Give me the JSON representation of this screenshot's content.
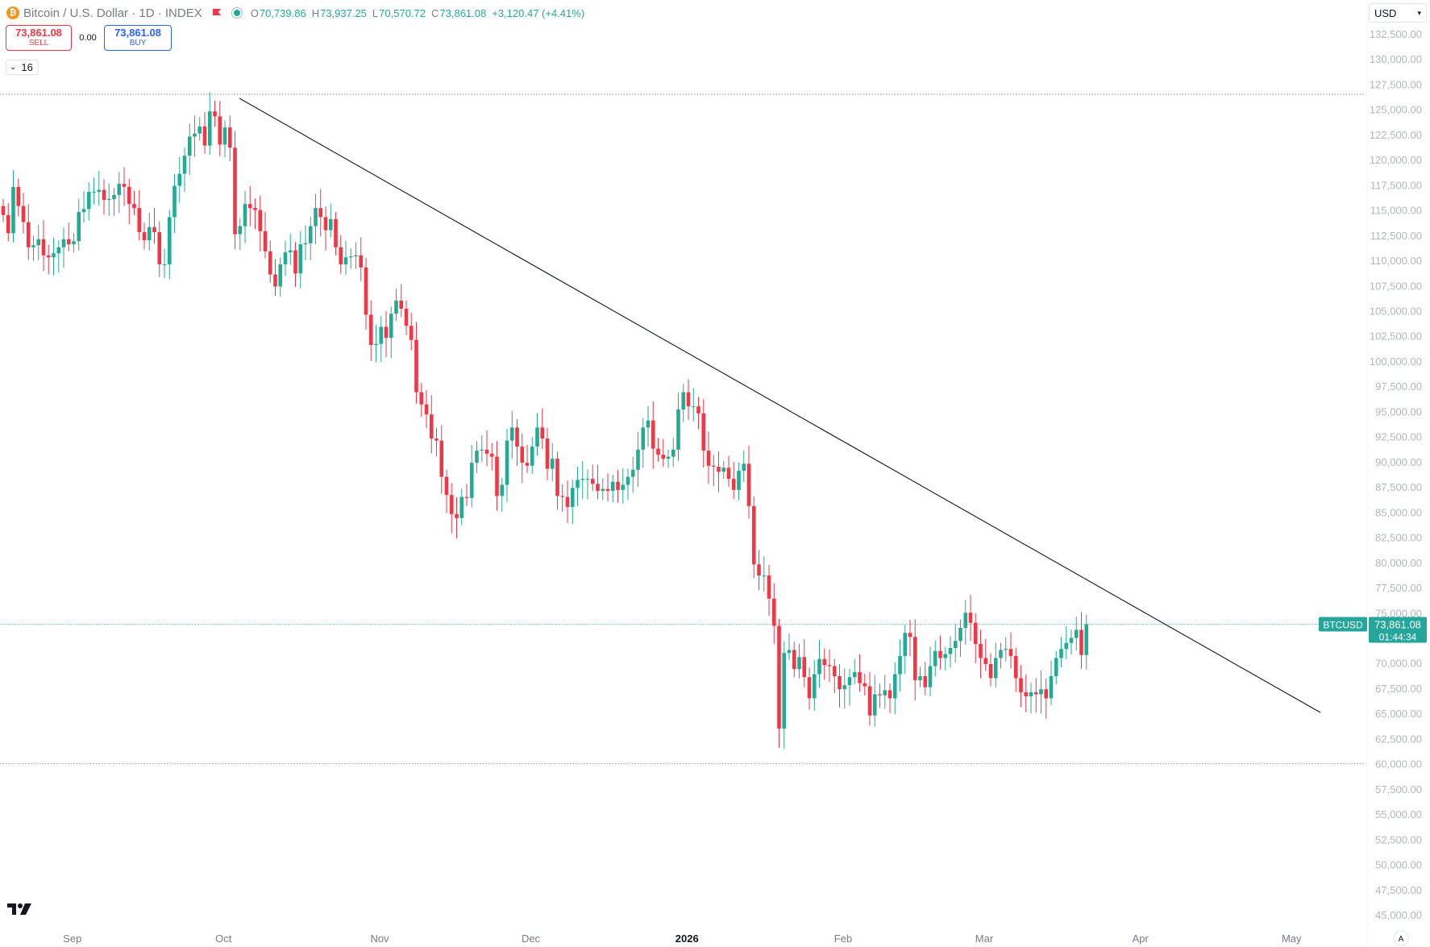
{
  "header": {
    "symbol_title": "Bitcoin / U.S. Dollar · 1D · INDEX",
    "coin_glyph": "₿",
    "open_key": "O",
    "open_value": "70,739.86",
    "high_key": "H",
    "high_value": "73,937.25",
    "low_key": "L",
    "low_value": "70,570.72",
    "close_key": "C",
    "close_value": "73,861.08",
    "change": "+3,120.47 (+4.41%)",
    "flag_icon": "flag-icon",
    "status_icon": "market-open-icon"
  },
  "trade": {
    "sell_price": "73,861.08",
    "sell_label": "SELL",
    "spread": "0.00",
    "buy_price": "73,861.08",
    "buy_label": "BUY"
  },
  "indicator_toggle": {
    "count": "16"
  },
  "currency_select": {
    "value": "USD"
  },
  "colors": {
    "up": "#22ab94",
    "down": "#f23645",
    "accent": "#26a69a",
    "text": "#131722",
    "muted": "#787b86"
  },
  "chart_data": {
    "type": "candlestick",
    "symbol": "BTCUSD",
    "interval": "1D",
    "price_axis": {
      "min": 43500,
      "max": 134000,
      "ticks": [
        "132,500.00",
        "130,000.00",
        "127,500.00",
        "125,000.00",
        "122,500.00",
        "120,000.00",
        "117,500.00",
        "115,000.00",
        "112,500.00",
        "110,000.00",
        "107,500.00",
        "105,000.00",
        "102,500.00",
        "100,000.00",
        "97,500.00",
        "95,000.00",
        "92,500.00",
        "90,000.00",
        "87,500.00",
        "85,000.00",
        "82,500.00",
        "80,000.00",
        "77,500.00",
        "75,000.00",
        "72,500.00",
        "70,000.00",
        "67,500.00",
        "65,000.00",
        "62,500.00",
        "60,000.00",
        "57,500.00",
        "55,000.00",
        "52,500.00",
        "50,000.00",
        "47,500.00",
        "45,000.00"
      ]
    },
    "time_axis": {
      "labels": [
        {
          "text": "Sep",
          "date": "2025-09-01",
          "bold": false
        },
        {
          "text": "Oct",
          "date": "2025-10-01",
          "bold": false
        },
        {
          "text": "Nov",
          "date": "2025-11-01",
          "bold": false
        },
        {
          "text": "Dec",
          "date": "2025-12-01",
          "bold": false
        },
        {
          "text": "2026",
          "date": "2026-01-01",
          "bold": true
        },
        {
          "text": "Feb",
          "date": "2026-02-01",
          "bold": false
        },
        {
          "text": "Mar",
          "date": "2026-03-01",
          "bold": false
        },
        {
          "text": "Apr",
          "date": "2026-04-01",
          "bold": false
        },
        {
          "text": "May",
          "date": "2026-05-01",
          "bold": false
        }
      ],
      "auto_scale_label": "A"
    },
    "ohlc_closes": [
      114500,
      112700,
      117300,
      115400,
      113800,
      111300,
      111500,
      112100,
      110500,
      110300,
      110700,
      111300,
      112100,
      111600,
      111900,
      114800,
      115100,
      116800,
      116800,
      117000,
      116000,
      116100,
      116500,
      117600,
      117300,
      115600,
      115200,
      112800,
      112000,
      113300,
      112800,
      109600,
      109600,
      114300,
      117400,
      118600,
      120400,
      122300,
      122600,
      123300,
      121400,
      124800,
      124300,
      121500,
      123200,
      121200,
      112600,
      113400,
      115600,
      115200,
      115000,
      112900,
      110900,
      108600,
      107400,
      109600,
      110800,
      111000,
      108700,
      111600,
      111700,
      113400,
      115200,
      114300,
      113000,
      114100,
      111300,
      109600,
      110300,
      110400,
      110500,
      109300,
      104600,
      101600,
      101700,
      103400,
      102300,
      104700,
      106000,
      105200,
      103500,
      102100,
      96900,
      95700,
      94700,
      92300,
      92100,
      88500,
      86700,
      84800,
      84400,
      86500,
      86400,
      89900,
      91100,
      91200,
      90800,
      90500,
      86600,
      87700,
      92100,
      93400,
      91500,
      89900,
      89600,
      91500,
      93400,
      92300,
      89300,
      90300,
      86600,
      86500,
      85500,
      87400,
      88200,
      88300,
      88300,
      87800,
      87100,
      87300,
      87100,
      88000,
      87200,
      87700,
      88500,
      89200,
      91200,
      93400,
      94100,
      91300,
      90700,
      90300,
      90500,
      91200,
      95200,
      96900,
      95500,
      95500,
      94800,
      91100,
      89600,
      89500,
      89000,
      89400,
      88300,
      87200,
      89100,
      89800,
      85600,
      79800,
      78700,
      78700,
      76400,
      73700,
      63500,
      71000,
      71300,
      69400,
      70600,
      68600,
      66500,
      68900,
      70400,
      69800,
      69700,
      68700,
      67400,
      67800,
      68600,
      69100,
      68000,
      67700,
      64800,
      66900,
      66800,
      67300,
      66500,
      68900,
      70700,
      73000,
      72600,
      68300,
      68700,
      67600,
      69700,
      71200,
      70500,
      70900,
      71500,
      72200,
      73500,
      75000,
      74000,
      71900,
      70500,
      69900,
      68500,
      70500,
      71300,
      71400,
      70700,
      68500,
      67100,
      66700,
      67100,
      66900,
      67400,
      66500,
      68700,
      70500,
      71400,
      72000,
      72500,
      73300,
      70800,
      73861
    ]
  }
}
